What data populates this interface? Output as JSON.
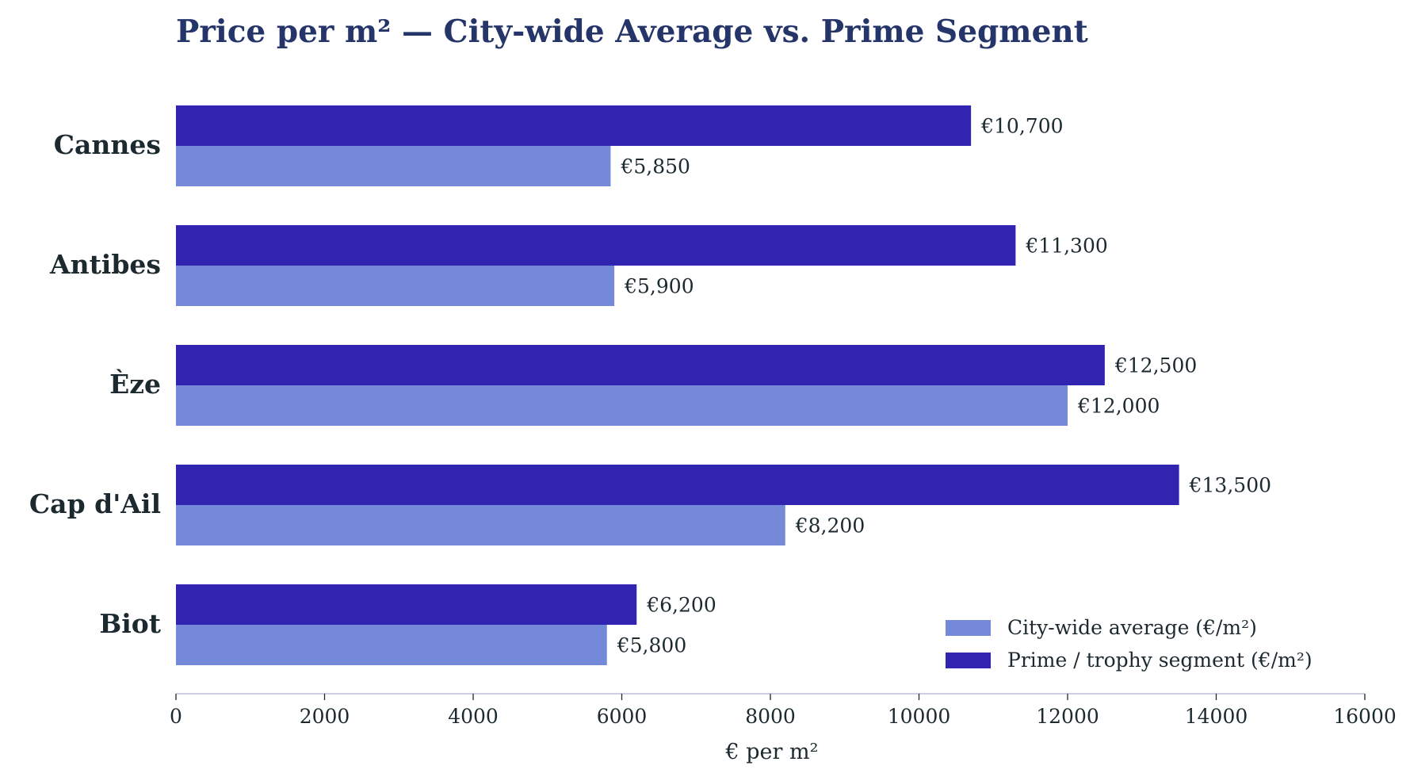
{
  "chart_data": {
    "type": "bar",
    "orientation": "horizontal",
    "title": "Price per m² — City-wide Average vs. Prime Segment",
    "xlabel": "€ per m²",
    "ylabel": "",
    "xlim": [
      0,
      16000
    ],
    "xticks": [
      "0",
      "2000",
      "4000",
      "6000",
      "8000",
      "10000",
      "12000",
      "14000",
      "16000"
    ],
    "categories": [
      "Cannes",
      "Antibes",
      "Èze",
      "Cap d'Ail",
      "Biot"
    ],
    "series": [
      {
        "name": "City-wide average (€/m²)",
        "color": "#7589d9",
        "values": [
          5850,
          5900,
          12000,
          8200,
          5800
        ],
        "labels": [
          "€5,850",
          "€5,900",
          "€12,000",
          "€8,200",
          "€5,800"
        ]
      },
      {
        "name": "Prime / trophy segment (€/m²)",
        "color": "#3024b0",
        "values": [
          10700,
          11300,
          12500,
          13500,
          6200
        ],
        "labels": [
          "€10,700",
          "€11,300",
          "€12,500",
          "€13,500",
          "€6,200"
        ]
      }
    ],
    "legend": "bottom-right",
    "grid": false,
    "colors": {
      "title": "#253569",
      "text": "#1c2a30",
      "axis": "#b8c0d8"
    }
  }
}
